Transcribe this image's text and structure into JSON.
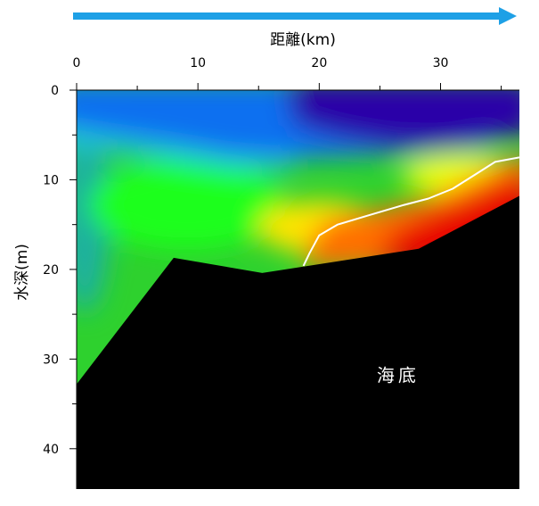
{
  "chart_data": {
    "type": "heatmap",
    "title": "",
    "xlabel": "距離(km)",
    "ylabel": "水深(m)",
    "xlim": [
      0,
      36.5
    ],
    "ylim": [
      0,
      44.5
    ],
    "x_ticks": [
      0,
      10,
      20,
      30
    ],
    "y_ticks": [
      0,
      10,
      20,
      30,
      40
    ],
    "x_axis_position": "top",
    "y_axis_inverted": true,
    "colormap": [
      "#2b00a8",
      "#0044ff",
      "#00b4ff",
      "#1aff1a",
      "#ffee00",
      "#ff6a00",
      "#e60000"
    ],
    "direction_arrow_color": "#1ea0e6",
    "seabed_color": "#000000",
    "seabed_profile": {
      "x": [
        0,
        8,
        15.3,
        28.2,
        36.5
      ],
      "depth": [
        32.8,
        18.7,
        20.4,
        17.7,
        11.8
      ]
    },
    "contour_line": {
      "color": "#ffffff",
      "x": [
        18.7,
        19.2,
        20,
        21.5,
        24,
        27,
        29,
        31,
        33,
        34.5,
        36.5
      ],
      "depth": [
        19.6,
        18.2,
        16.2,
        15.0,
        14.0,
        12.8,
        12.1,
        11.0,
        9.3,
        8.0,
        7.5
      ]
    },
    "annotation": {
      "text": "海底",
      "x": 26.5,
      "depth": 32.5
    }
  }
}
